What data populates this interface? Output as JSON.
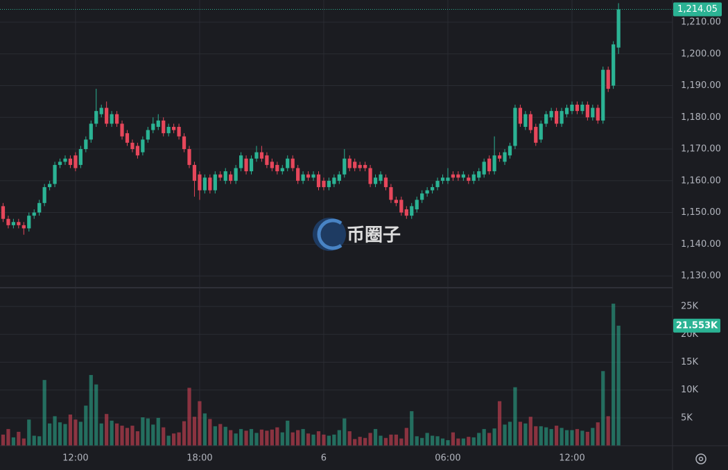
{
  "chart_data": {
    "type": "candlestick",
    "up_color": "#2bb394",
    "down_color": "#e6475b",
    "grid": true,
    "watermark": "币圈子",
    "xlim": [
      8.35,
      40.86
    ],
    "xticks": [
      {
        "value": 12,
        "label": "12:00"
      },
      {
        "value": 18,
        "label": "18:00"
      },
      {
        "value": 24,
        "label": "6"
      },
      {
        "value": 30,
        "label": "06:00"
      },
      {
        "value": 36,
        "label": "12:00"
      }
    ],
    "ylim": [
      1126.3,
      1217.0
    ],
    "yticks": [
      {
        "value": 1130,
        "label": "1,130.00"
      },
      {
        "value": 1140,
        "label": "1,140.00"
      },
      {
        "value": 1150,
        "label": "1,150.00"
      },
      {
        "value": 1160,
        "label": "1,160.00"
      },
      {
        "value": 1170,
        "label": "1,170.00"
      },
      {
        "value": 1180,
        "label": "1,180.00"
      },
      {
        "value": 1190,
        "label": "1,190.00"
      },
      {
        "value": 1200,
        "label": "1,200.00"
      },
      {
        "value": 1210,
        "label": "1,210.00"
      }
    ],
    "last_price_label": "1,214.05",
    "x": [
      8.5,
      8.75,
      9,
      9.25,
      9.5,
      9.75,
      10,
      10.25,
      10.5,
      10.75,
      11,
      11.25,
      11.5,
      11.75,
      12,
      12.25,
      12.5,
      12.75,
      13,
      13.25,
      13.5,
      13.75,
      14,
      14.25,
      14.5,
      14.75,
      15,
      15.25,
      15.5,
      15.75,
      16,
      16.25,
      16.5,
      16.75,
      17,
      17.25,
      17.5,
      17.75,
      18,
      18.25,
      18.5,
      18.75,
      19,
      19.25,
      19.5,
      19.75,
      20,
      20.25,
      20.5,
      20.75,
      21,
      21.25,
      21.5,
      21.75,
      22,
      22.25,
      22.5,
      22.75,
      23,
      23.25,
      23.5,
      23.75,
      24,
      24.25,
      24.5,
      24.75,
      25,
      25.25,
      25.5,
      25.75,
      26,
      26.25,
      26.5,
      26.75,
      27,
      27.25,
      27.5,
      27.75,
      28,
      28.25,
      28.5,
      28.75,
      29,
      29.25,
      29.5,
      29.75,
      30,
      30.25,
      30.5,
      30.75,
      31,
      31.25,
      31.5,
      31.75,
      32,
      32.25,
      32.5,
      32.75,
      33,
      33.25,
      33.5,
      33.75,
      34,
      34.25,
      34.5,
      34.75,
      35,
      35.25,
      35.5,
      35.75,
      36,
      36.25,
      36.5,
      36.75,
      37,
      37.25,
      37.5,
      37.75,
      38,
      38.25
    ],
    "open": [
      1152,
      1148,
      1146,
      1147,
      1146,
      1145,
      1149,
      1150,
      1153,
      1158,
      1159,
      1165,
      1166,
      1167,
      1168,
      1165,
      1170,
      1173,
      1178,
      1181,
      1183,
      1178,
      1181,
      1178,
      1175,
      1172,
      1171,
      1169,
      1173,
      1176,
      1177,
      1179,
      1175,
      1177,
      1177,
      1174,
      1170,
      1165,
      1162,
      1157,
      1161,
      1157,
      1162,
      1160,
      1162,
      1160,
      1164,
      1167,
      1163,
      1167,
      1169,
      1168,
      1166,
      1165,
      1163,
      1164,
      1167,
      1164,
      1160,
      1162,
      1161,
      1162,
      1160,
      1158,
      1159,
      1160,
      1162,
      1167,
      1166,
      1165,
      1165,
      1164,
      1159,
      1160,
      1161,
      1158,
      1154,
      1154,
      1151,
      1149,
      1151,
      1154,
      1156,
      1157,
      1158,
      1160,
      1160,
      1162,
      1162,
      1161,
      1161,
      1160,
      1161,
      1162,
      1167,
      1163,
      1168,
      1166,
      1168,
      1171,
      1183,
      1177,
      1181,
      1177,
      1173,
      1178,
      1180,
      1182,
      1178,
      1181,
      1182,
      1184,
      1182,
      1184,
      1180,
      1183,
      1179,
      1195,
      1190,
      1202
    ],
    "high": [
      1153,
      1149,
      1148,
      1148,
      1147,
      1150,
      1151,
      1154,
      1159,
      1160,
      1166,
      1167,
      1168,
      1168,
      1169,
      1171,
      1174,
      1179,
      1189,
      1184,
      1185,
      1182,
      1182,
      1179,
      1176,
      1173,
      1172,
      1174,
      1177,
      1180,
      1181,
      1180,
      1178,
      1178,
      1178,
      1175,
      1171,
      1166,
      1163,
      1162,
      1162,
      1163,
      1163,
      1164,
      1163,
      1165,
      1169,
      1168,
      1168,
      1171,
      1171,
      1169,
      1167,
      1166,
      1165,
      1168,
      1168,
      1165,
      1163,
      1163,
      1163,
      1163,
      1161,
      1161,
      1162,
      1163,
      1170,
      1168,
      1167,
      1166,
      1166,
      1165,
      1162,
      1163,
      1162,
      1159,
      1155,
      1155,
      1152,
      1153,
      1155,
      1157,
      1158,
      1159,
      1161,
      1162,
      1164,
      1163,
      1163,
      1163,
      1162,
      1163,
      1164,
      1167,
      1168,
      1174,
      1169,
      1170,
      1172,
      1184,
      1184,
      1182,
      1182,
      1178,
      1179,
      1182,
      1183,
      1183,
      1183,
      1184,
      1185,
      1185,
      1185,
      1185,
      1184,
      1184,
      1196,
      1196,
      1204,
      1216
    ],
    "low": [
      1147,
      1145,
      1145,
      1145,
      1143,
      1144,
      1148,
      1149,
      1152,
      1157,
      1158,
      1164,
      1165,
      1164,
      1163,
      1164,
      1169,
      1172,
      1177,
      1180,
      1177,
      1177,
      1177,
      1173,
      1171,
      1169,
      1167,
      1168,
      1172,
      1175,
      1176,
      1174,
      1174,
      1175,
      1173,
      1169,
      1164,
      1155,
      1154,
      1156,
      1156,
      1156,
      1160,
      1159,
      1159,
      1159,
      1163,
      1162,
      1162,
      1166,
      1166,
      1164,
      1163,
      1162,
      1162,
      1163,
      1163,
      1159,
      1159,
      1160,
      1160,
      1157,
      1157,
      1157,
      1158,
      1159,
      1161,
      1163,
      1163,
      1163,
      1163,
      1158,
      1158,
      1159,
      1157,
      1153,
      1152,
      1149,
      1148,
      1148,
      1150,
      1153,
      1155,
      1156,
      1157,
      1159,
      1159,
      1160,
      1160,
      1160,
      1159,
      1159,
      1160,
      1161,
      1162,
      1162,
      1166,
      1165,
      1167,
      1170,
      1177,
      1176,
      1175,
      1171,
      1172,
      1177,
      1179,
      1177,
      1177,
      1180,
      1181,
      1181,
      1181,
      1179,
      1179,
      1178,
      1178,
      1188,
      1189,
      1200
    ],
    "close": [
      1148,
      1146,
      1147,
      1146,
      1145,
      1149,
      1150,
      1153,
      1158,
      1159,
      1165,
      1166,
      1167,
      1165,
      1164,
      1170,
      1173,
      1178,
      1182,
      1183,
      1178,
      1181,
      1178,
      1174,
      1172,
      1170,
      1168,
      1173,
      1176,
      1178,
      1179,
      1175,
      1177,
      1176,
      1174,
      1170,
      1165,
      1160,
      1157,
      1161,
      1157,
      1162,
      1161,
      1163,
      1160,
      1164,
      1168,
      1163,
      1167,
      1169,
      1167,
      1165,
      1164,
      1163,
      1164,
      1167,
      1164,
      1160,
      1162,
      1161,
      1162,
      1158,
      1158,
      1160,
      1161,
      1162,
      1167,
      1164,
      1164,
      1164,
      1164,
      1159,
      1161,
      1162,
      1158,
      1154,
      1153,
      1150,
      1149,
      1152,
      1154,
      1156,
      1157,
      1158,
      1160,
      1161,
      1161,
      1161,
      1161,
      1162,
      1160,
      1162,
      1163,
      1166,
      1163,
      1168,
      1167,
      1169,
      1171,
      1183,
      1178,
      1181,
      1176,
      1172,
      1178,
      1181,
      1182,
      1178,
      1182,
      1183,
      1184,
      1182,
      1184,
      1180,
      1183,
      1179,
      1195,
      1189,
      1203,
      1214.05
    ],
    "volume": {
      "ylim": [
        0,
        27750
      ],
      "yticks": [
        {
          "value": 5000,
          "label": "5K"
        },
        {
          "value": 10000,
          "label": "10K"
        },
        {
          "value": 15000,
          "label": "15K"
        },
        {
          "value": 20000,
          "label": "20K"
        },
        {
          "value": 25000,
          "label": "25K"
        }
      ],
      "last_label": "21.553K",
      "values": [
        2000,
        3000,
        1500,
        2500,
        1300,
        4700,
        1800,
        1700,
        11800,
        4000,
        5300,
        4200,
        3900,
        5600,
        4700,
        4300,
        7200,
        12700,
        11000,
        4000,
        5700,
        4500,
        4000,
        3600,
        3200,
        3600,
        2600,
        5100,
        4900,
        3800,
        5000,
        3300,
        1800,
        2200,
        2400,
        4400,
        10400,
        5200,
        8000,
        5800,
        4800,
        3500,
        3900,
        3400,
        2800,
        2200,
        3000,
        2700,
        3000,
        2300,
        2900,
        2700,
        2900,
        3300,
        2400,
        4500,
        2400,
        2800,
        3000,
        2200,
        2000,
        2600,
        2000,
        1800,
        2000,
        2800,
        4900,
        2600,
        1200,
        1600,
        1400,
        2300,
        3000,
        1800,
        1400,
        2000,
        2000,
        1300,
        3200,
        6200,
        1700,
        1400,
        2300,
        1800,
        1700,
        1300,
        1000,
        2400,
        1300,
        1300,
        1600,
        1500,
        2300,
        3000,
        2300,
        3100,
        8000,
        3800,
        4300,
        10500,
        4300,
        4000,
        5200,
        3500,
        3500,
        3300,
        3000,
        3600,
        3200,
        2800,
        2800,
        3000,
        2700,
        2500,
        3200,
        4200,
        13400,
        5300,
        25500,
        21553
      ]
    }
  }
}
